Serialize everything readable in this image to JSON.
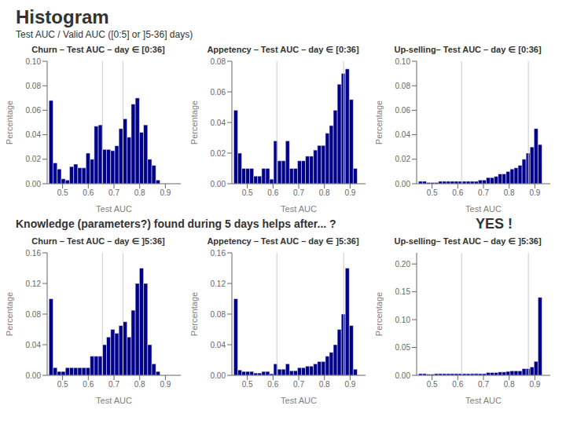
{
  "title": "Histogram",
  "subtitle": "Test AUC / Valid AUC ([0:5] or ]5-36] days)",
  "annotations": [
    "Knowledge (parameters?) found during 5 days helps after... ?",
    "YES !"
  ],
  "chart_data": [
    {
      "type": "histogram",
      "title": "Churn – Test AUC – day ∈ [0:36]",
      "xlabel": "Test AUC",
      "ylabel": "Percentage",
      "color": "#00008B",
      "grid": false,
      "vlines": [
        0.655,
        0.735
      ],
      "xlim": [
        0.44,
        0.96
      ],
      "ylim": [
        0,
        0.1
      ],
      "xticks": [
        0.5,
        0.6,
        0.7,
        0.8,
        0.9
      ],
      "yticks": [
        {
          "value": 0,
          "label": "0.00"
        },
        {
          "value": 0.02,
          "label": "0.02"
        },
        {
          "value": 0.04,
          "label": "0.04"
        },
        {
          "value": 0.06,
          "label": "0.06"
        },
        {
          "value": 0.08,
          "label": "0.08"
        },
        {
          "value": 0.1,
          "label": "0.10"
        }
      ],
      "bins": [
        0.447,
        0.463,
        0.479,
        0.495,
        0.511,
        0.527,
        0.543,
        0.559,
        0.575,
        0.591,
        0.607,
        0.623,
        0.639,
        0.655,
        0.671,
        0.687,
        0.703,
        0.719,
        0.735,
        0.751,
        0.767,
        0.783,
        0.799,
        0.815,
        0.831,
        0.847,
        0.863,
        0.879,
        0.895,
        0.911,
        0.927
      ],
      "values": [
        0.068,
        0.017,
        0.012,
        0.004,
        0.003,
        0.014,
        0.016,
        0.013,
        0.013,
        0.025,
        0.02,
        0.047,
        0.048,
        0.028,
        0.028,
        0.027,
        0.031,
        0.045,
        0.053,
        0.038,
        0.065,
        0.07,
        0.042,
        0.048,
        0.02,
        0.015,
        0.003,
        0.0,
        0.0,
        0.0
      ]
    },
    {
      "type": "histogram",
      "title": "Appetency – Test AUC – day ∈ [0:36]",
      "xlabel": "Test AUC",
      "ylabel": "Percentage",
      "color": "#00008B",
      "grid": false,
      "vlines": [
        0.615,
        0.875
      ],
      "xlim": [
        0.44,
        0.96
      ],
      "ylim": [
        0,
        0.08
      ],
      "xticks": [
        0.5,
        0.6,
        0.7,
        0.8,
        0.9
      ],
      "yticks": [
        {
          "value": 0,
          "label": "0.00"
        },
        {
          "value": 0.02,
          "label": "0.02"
        },
        {
          "value": 0.04,
          "label": "0.04"
        },
        {
          "value": 0.06,
          "label": "0.06"
        },
        {
          "value": 0.08,
          "label": "0.08"
        }
      ],
      "bins": [
        0.44725,
        0.46275,
        0.47825,
        0.49375,
        0.50925,
        0.52475,
        0.54025,
        0.55575,
        0.57125,
        0.58675,
        0.60225,
        0.61775,
        0.63325,
        0.64875,
        0.66425,
        0.67975,
        0.69525,
        0.71075,
        0.72625,
        0.74175,
        0.75725,
        0.77275,
        0.78825,
        0.80375,
        0.81925,
        0.83475,
        0.85025,
        0.86575,
        0.88125,
        0.89675,
        0.91225,
        0.92775
      ],
      "values": [
        0.048,
        0.02,
        0.01,
        0.01,
        0.01,
        0.005,
        0.005,
        0.01,
        0.01,
        0.003,
        0.028,
        0.015,
        0.015,
        0.028,
        0.01,
        0.01,
        0.015,
        0.015,
        0.018,
        0.018,
        0.022,
        0.025,
        0.025,
        0.033,
        0.038,
        0.048,
        0.065,
        0.072,
        0.075,
        0.055,
        0.01
      ]
    },
    {
      "type": "histogram",
      "title": "Up-selling– Test AUC – day ∈ [0:36]",
      "xlabel": "Test AUC",
      "ylabel": "Percentage",
      "color": "#00008B",
      "grid": false,
      "vlines": [
        0.615,
        0.875
      ],
      "xlim": [
        0.44,
        0.96
      ],
      "ylim": [
        0,
        0.1
      ],
      "xticks": [
        0.5,
        0.6,
        0.7,
        0.8,
        0.9
      ],
      "yticks": [
        {
          "value": 0,
          "label": "0.00"
        },
        {
          "value": 0.02,
          "label": "0.02"
        },
        {
          "value": 0.04,
          "label": "0.04"
        },
        {
          "value": 0.06,
          "label": "0.06"
        },
        {
          "value": 0.08,
          "label": "0.08"
        },
        {
          "value": 0.1,
          "label": "0.10"
        }
      ],
      "bins": [
        0.44725,
        0.46275,
        0.47825,
        0.49375,
        0.50925,
        0.52475,
        0.54025,
        0.55575,
        0.57125,
        0.58675,
        0.60225,
        0.61775,
        0.63325,
        0.64875,
        0.66425,
        0.67975,
        0.69525,
        0.71075,
        0.72625,
        0.74175,
        0.75725,
        0.77275,
        0.78825,
        0.80375,
        0.81925,
        0.83475,
        0.85025,
        0.86575,
        0.88125,
        0.89675,
        0.91225,
        0.92775
      ],
      "values": [
        0.002,
        0.002,
        0.001,
        0.001,
        0.001,
        0.002,
        0.002,
        0.002,
        0.002,
        0.002,
        0.002,
        0.002,
        0.002,
        0.002,
        0.002,
        0.003,
        0.003,
        0.005,
        0.005,
        0.006,
        0.008,
        0.008,
        0.01,
        0.012,
        0.013,
        0.015,
        0.02,
        0.025,
        0.03,
        0.045,
        0.032
      ]
    },
    {
      "type": "histogram",
      "title": "Churn – Test AUC – day ∈ ]5:36]",
      "xlabel": "Test AUC",
      "ylabel": "Percentage",
      "color": "#00008B",
      "grid": false,
      "vlines": [
        0.655,
        0.735
      ],
      "xlim": [
        0.44,
        0.96
      ],
      "ylim": [
        0,
        0.16
      ],
      "xticks": [
        0.5,
        0.6,
        0.7,
        0.8,
        0.9
      ],
      "yticks": [
        {
          "value": 0,
          "label": "0.00"
        },
        {
          "value": 0.04,
          "label": "0.04"
        },
        {
          "value": 0.08,
          "label": "0.08"
        },
        {
          "value": 0.12,
          "label": "0.12"
        },
        {
          "value": 0.16,
          "label": "0.16"
        }
      ],
      "bins": [
        0.447,
        0.463,
        0.479,
        0.495,
        0.511,
        0.527,
        0.543,
        0.559,
        0.575,
        0.591,
        0.607,
        0.623,
        0.639,
        0.655,
        0.671,
        0.687,
        0.703,
        0.719,
        0.735,
        0.751,
        0.767,
        0.783,
        0.799,
        0.815,
        0.831,
        0.847,
        0.863,
        0.879,
        0.895,
        0.911,
        0.927
      ],
      "values": [
        0.1,
        0.01,
        0.005,
        0.005,
        0.01,
        0.01,
        0.01,
        0.01,
        0.01,
        0.01,
        0.025,
        0.025,
        0.025,
        0.04,
        0.05,
        0.06,
        0.055,
        0.065,
        0.07,
        0.05,
        0.085,
        0.12,
        0.14,
        0.12,
        0.04,
        0.015,
        0.005,
        0.0,
        0.0,
        0.0
      ]
    },
    {
      "type": "histogram",
      "title": "Appetency – Test AUC – day ∈ ]5:36]",
      "xlabel": "Test AUC",
      "ylabel": "Percentage",
      "color": "#00008B",
      "grid": false,
      "vlines": [
        0.615,
        0.875
      ],
      "xlim": [
        0.44,
        0.96
      ],
      "ylim": [
        0,
        0.16
      ],
      "xticks": [
        0.5,
        0.6,
        0.7,
        0.8,
        0.9
      ],
      "yticks": [
        {
          "value": 0,
          "label": "0.00"
        },
        {
          "value": 0.04,
          "label": "0.04"
        },
        {
          "value": 0.08,
          "label": "0.08"
        },
        {
          "value": 0.12,
          "label": "0.12"
        },
        {
          "value": 0.16,
          "label": "0.16"
        }
      ],
      "bins": [
        0.44725,
        0.46275,
        0.47825,
        0.49375,
        0.50925,
        0.52475,
        0.54025,
        0.55575,
        0.57125,
        0.58675,
        0.60225,
        0.61775,
        0.63325,
        0.64875,
        0.66425,
        0.67975,
        0.69525,
        0.71075,
        0.72625,
        0.74175,
        0.75725,
        0.77275,
        0.78825,
        0.80375,
        0.81925,
        0.83475,
        0.85025,
        0.86575,
        0.88125,
        0.89675,
        0.91225,
        0.92775
      ],
      "values": [
        0.1,
        0.007,
        0.005,
        0.005,
        0.005,
        0.003,
        0.003,
        0.005,
        0.005,
        0.002,
        0.015,
        0.008,
        0.008,
        0.015,
        0.006,
        0.006,
        0.01,
        0.01,
        0.012,
        0.012,
        0.015,
        0.018,
        0.018,
        0.025,
        0.03,
        0.04,
        0.06,
        0.08,
        0.14,
        0.065,
        0.008
      ]
    },
    {
      "type": "histogram",
      "title": "Up-selling– Test AUC – day ∈ ]5:36]",
      "xlabel": "Test AUC",
      "ylabel": "Percentage",
      "color": "#00008B",
      "grid": false,
      "vlines": [
        0.615,
        0.875
      ],
      "xlim": [
        0.44,
        0.96
      ],
      "ylim": [
        0,
        0.22
      ],
      "xticks": [
        0.5,
        0.6,
        0.7,
        0.8,
        0.9
      ],
      "yticks": [
        {
          "value": 0,
          "label": "0.00"
        },
        {
          "value": 0.05,
          "label": "0.05"
        },
        {
          "value": 0.1,
          "label": "0.10"
        },
        {
          "value": 0.15,
          "label": "0.15"
        },
        {
          "value": 0.2,
          "label": "0.20"
        }
      ],
      "bins": [
        0.44725,
        0.46275,
        0.47825,
        0.49375,
        0.50925,
        0.52475,
        0.54025,
        0.55575,
        0.57125,
        0.58675,
        0.60225,
        0.61775,
        0.63325,
        0.64875,
        0.66425,
        0.67975,
        0.69525,
        0.71075,
        0.72625,
        0.74175,
        0.75725,
        0.77275,
        0.78825,
        0.80375,
        0.81925,
        0.83475,
        0.85025,
        0.86575,
        0.88125,
        0.89675,
        0.91225,
        0.92775
      ],
      "values": [
        0.003,
        0.003,
        0.002,
        0.002,
        0.003,
        0.003,
        0.003,
        0.003,
        0.003,
        0.003,
        0.003,
        0.003,
        0.003,
        0.003,
        0.003,
        0.003,
        0.003,
        0.005,
        0.005,
        0.005,
        0.006,
        0.006,
        0.007,
        0.008,
        0.008,
        0.008,
        0.012,
        0.012,
        0.015,
        0.025,
        0.14
      ]
    }
  ]
}
